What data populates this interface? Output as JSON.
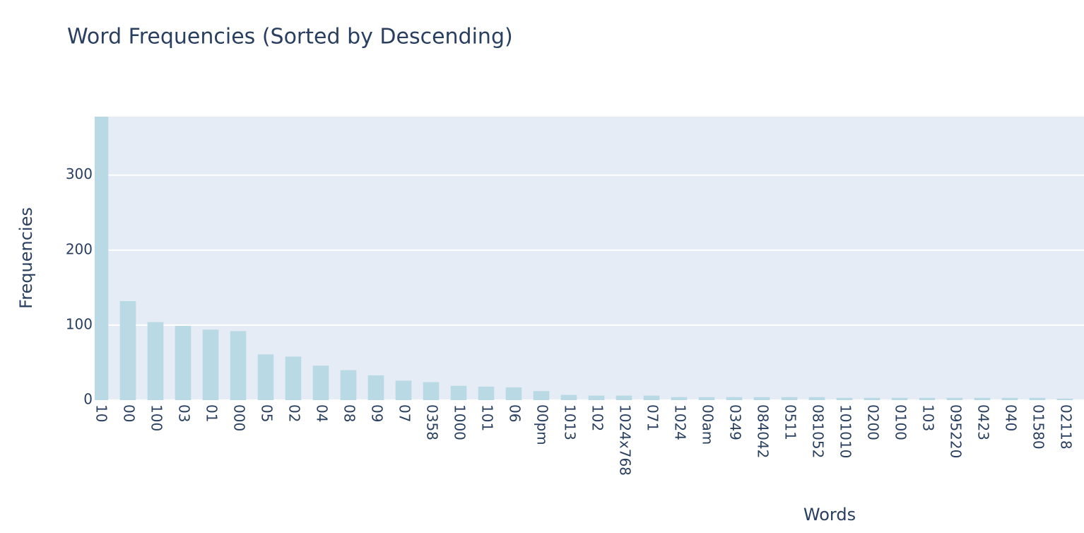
{
  "chart_data": {
    "type": "bar",
    "title": "Word Frequencies (Sorted by Descending)",
    "x_label": "Words",
    "y_label": "Frequencies",
    "categories": [
      "10",
      "00",
      "100",
      "03",
      "01",
      "000",
      "05",
      "02",
      "04",
      "08",
      "09",
      "07",
      "0358",
      "1000",
      "101",
      "06",
      "00pm",
      "1013",
      "102",
      "1024x768",
      "071",
      "1024",
      "00am",
      "0349",
      "084042",
      "0511",
      "081052",
      "101010",
      "0200",
      "0100",
      "103",
      "095220",
      "0423",
      "040",
      "01580",
      "02118"
    ],
    "values": [
      380,
      132,
      104,
      99,
      94,
      92,
      61,
      58,
      46,
      40,
      33,
      26,
      24,
      19,
      18,
      17,
      12,
      7,
      6,
      6,
      6,
      4,
      4,
      4,
      4,
      4,
      4,
      3,
      3,
      3,
      3,
      3,
      3,
      3,
      3,
      2
    ],
    "color": "#b9d9e4",
    "ylim": [
      0,
      378
    ],
    "yticks": [
      0,
      100,
      200,
      300
    ],
    "grid": true
  }
}
